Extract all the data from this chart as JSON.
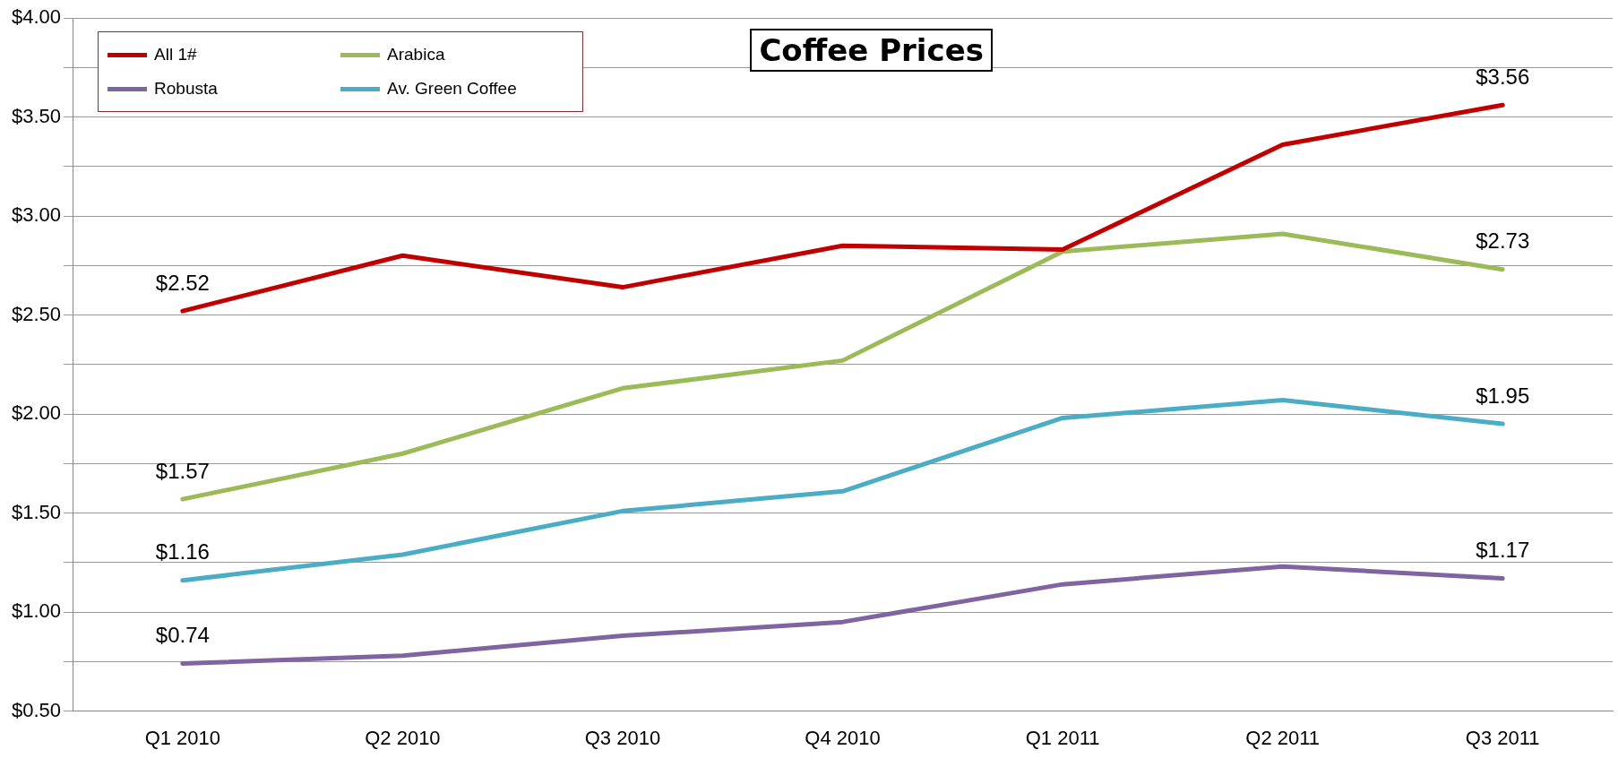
{
  "chart_data": {
    "type": "line",
    "title": "Coffee Prices",
    "categories": [
      "Q1 2010",
      "Q2 2010",
      "Q3 2010",
      "Q4 2010",
      "Q1 2011",
      "Q2 2011",
      "Q3 2011"
    ],
    "series": [
      {
        "name": "All 1#",
        "color": "#c00000",
        "values": [
          2.52,
          2.8,
          2.64,
          2.85,
          2.83,
          3.36,
          3.56
        ],
        "value_labels": [
          "$2.52",
          null,
          null,
          null,
          null,
          null,
          "$3.56"
        ]
      },
      {
        "name": "Arabica",
        "color": "#9bbb59",
        "values": [
          1.57,
          1.8,
          2.13,
          2.27,
          2.82,
          2.91,
          2.73
        ],
        "value_labels": [
          "$1.57",
          null,
          null,
          null,
          null,
          null,
          "$2.73"
        ]
      },
      {
        "name": "Robusta",
        "color": "#8064a2",
        "values": [
          0.74,
          0.78,
          0.88,
          0.95,
          1.14,
          1.23,
          1.17
        ],
        "value_labels": [
          "$0.74",
          null,
          null,
          null,
          null,
          null,
          "$1.17"
        ]
      },
      {
        "name": "Av. Green Coffee",
        "color": "#4bacc6",
        "values": [
          1.16,
          1.29,
          1.51,
          1.61,
          1.98,
          2.07,
          1.95
        ],
        "value_labels": [
          "$1.16",
          null,
          null,
          null,
          null,
          null,
          "$1.95"
        ]
      }
    ],
    "ylim": [
      0.5,
      4
    ],
    "yticks": [
      "$0.50",
      {
        "value": 0.75,
        "label": null
      },
      "$1.00",
      {
        "value": 1.25,
        "label": null
      },
      "$1.50",
      {
        "value": 1.75,
        "label": null
      },
      "$2.00",
      {
        "value": 2.25,
        "label": null
      },
      "$2.50",
      {
        "value": 2.75,
        "label": null
      },
      "$3.00",
      {
        "value": 3.25,
        "label": null
      },
      "$3.50",
      {
        "value": 3.75,
        "label": null
      },
      "$4.00"
    ],
    "grid": "y",
    "legend": "top left",
    "marker": "none",
    "line_style": "solid"
  }
}
